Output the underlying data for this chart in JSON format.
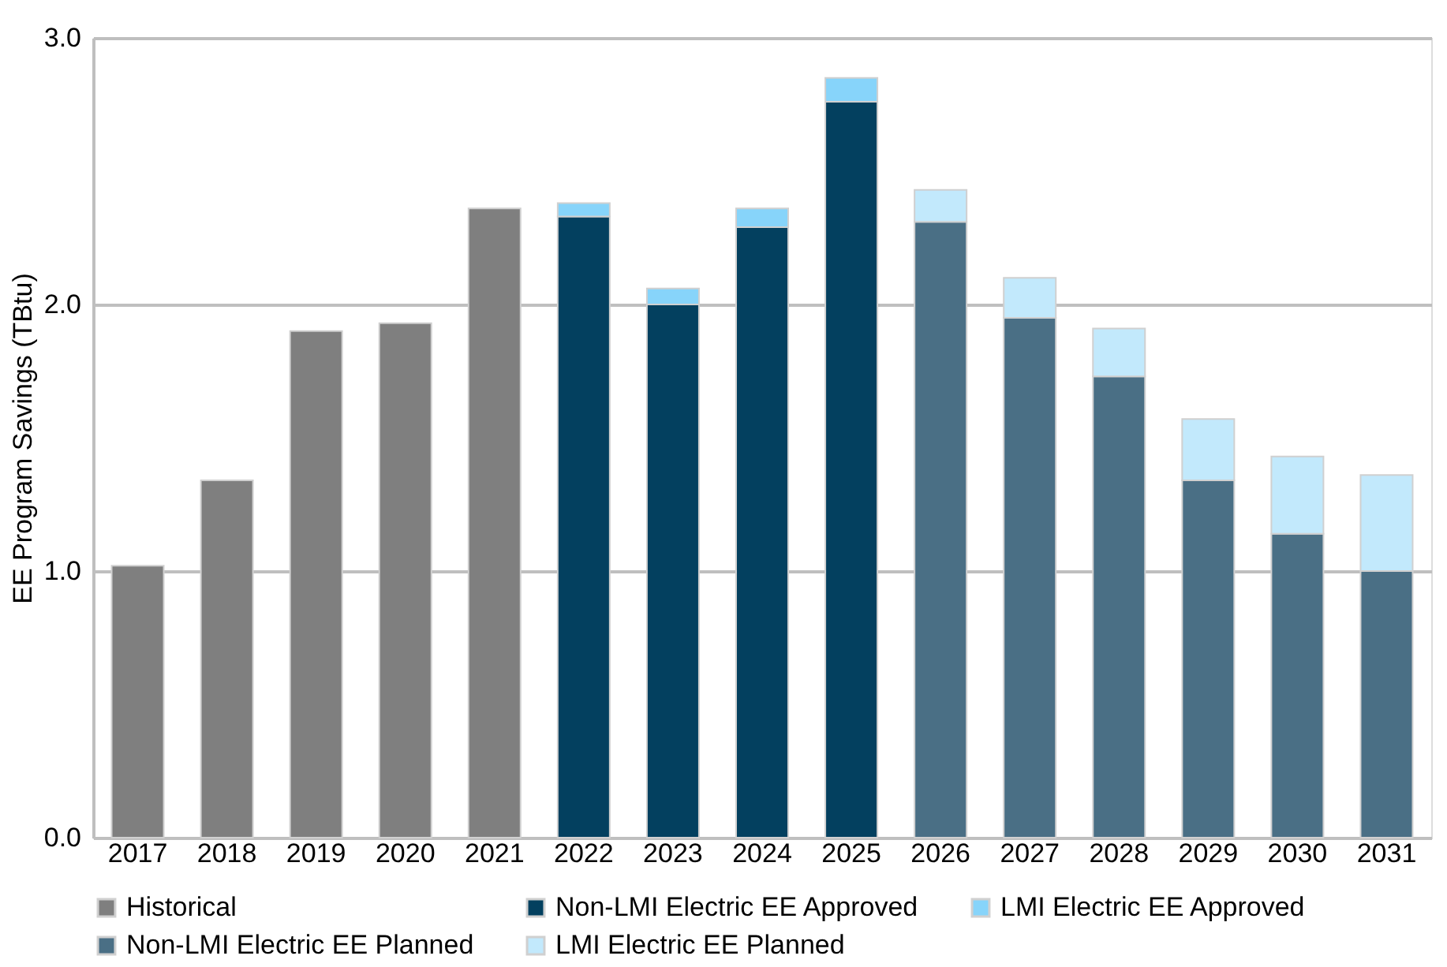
{
  "chart_data": {
    "type": "bar",
    "stacked": true,
    "ylabel": "EE Program Savings (TBtu)",
    "categories": [
      "2017",
      "2018",
      "2019",
      "2020",
      "2021",
      "2022",
      "2023",
      "2024",
      "2025",
      "2026",
      "2027",
      "2028",
      "2029",
      "2030",
      "2031"
    ],
    "series": [
      {
        "name": "Historical",
        "color": "#7f7f7f",
        "values": [
          1.02,
          1.34,
          1.9,
          1.93,
          2.36,
          null,
          null,
          null,
          null,
          null,
          null,
          null,
          null,
          null,
          null
        ]
      },
      {
        "name": "Non-LMI Electric EE Approved",
        "color": "#03405f",
        "values": [
          null,
          null,
          null,
          null,
          null,
          2.33,
          2.0,
          2.29,
          2.76,
          null,
          null,
          null,
          null,
          null,
          null
        ]
      },
      {
        "name": "LMI Electric EE Approved",
        "color": "#87d4fa",
        "values": [
          null,
          null,
          null,
          null,
          null,
          0.05,
          0.06,
          0.07,
          0.09,
          null,
          null,
          null,
          null,
          null,
          null
        ]
      },
      {
        "name": "Non-LMI Electric EE Planned",
        "color": "#4a6f85",
        "values": [
          null,
          null,
          null,
          null,
          null,
          null,
          null,
          null,
          null,
          2.31,
          1.95,
          1.73,
          1.34,
          1.14,
          1.0
        ]
      },
      {
        "name": "LMI Electric EE Planned",
        "color": "#c2e9fc",
        "values": [
          null,
          null,
          null,
          null,
          null,
          null,
          null,
          null,
          null,
          0.12,
          0.15,
          0.18,
          0.23,
          0.29,
          0.36
        ]
      }
    ],
    "ylim": [
      0,
      3
    ],
    "yticks": [
      {
        "value": 0,
        "label": "0.0"
      },
      {
        "value": 1,
        "label": "1.0"
      },
      {
        "value": 2,
        "label": "2.0"
      },
      {
        "value": 3,
        "label": "3.0"
      }
    ],
    "grid": "y",
    "legend": "bottom"
  }
}
